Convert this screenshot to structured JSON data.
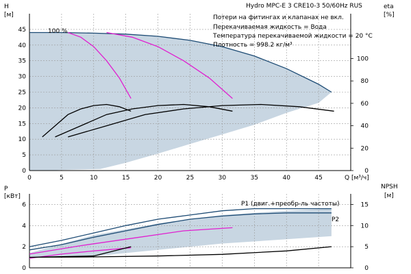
{
  "colors": {
    "background": "#ffffff",
    "axis": "#000000",
    "grid": "#9a9a9a",
    "area_fill": "#c8d6e2",
    "area_fill_light": "#e6eef7",
    "curve_blue": "#1d4b74",
    "curve_magenta": "#e020d0",
    "curve_black": "#000000"
  },
  "chart_data": [
    {
      "type": "line",
      "title": "Hydro MPC-E 3 CRE10-3 50/60Hz RUS",
      "notes": [
        "Потери на фитингах и клапанах не вкл.",
        "Перекачиваемая жидкость = Вода",
        "Температура перекачиваемой жидкости = 20 °C",
        "Плотность = 998.2 кг/м³"
      ],
      "annotation": "100 %",
      "xlabel": "Q [м³/ч]",
      "ylabel_left": [
        "H",
        "[м]"
      ],
      "ylabel_right": [
        "eta",
        "[%]"
      ],
      "xlim": [
        0,
        50
      ],
      "ylim_left": [
        0,
        50
      ],
      "ylim_right": [
        0,
        140
      ],
      "x_ticks": [
        0,
        5,
        10,
        15,
        20,
        25,
        30,
        35,
        40,
        45
      ],
      "y_ticks_left": [
        0,
        5,
        10,
        15,
        20,
        25,
        30,
        35,
        40,
        45
      ],
      "y_ticks_right": [
        0,
        20,
        40,
        60,
        80,
        100
      ],
      "grid": true,
      "operating_area": [
        [
          0,
          44
        ],
        [
          5,
          44
        ],
        [
          10,
          43.8
        ],
        [
          15,
          43.5
        ],
        [
          20,
          42.8
        ],
        [
          25,
          41.5
        ],
        [
          30,
          39.5
        ],
        [
          35,
          36.5
        ],
        [
          40,
          32.5
        ],
        [
          45,
          27.5
        ],
        [
          47,
          25
        ],
        [
          45,
          21.6
        ],
        [
          40,
          18.4
        ],
        [
          35,
          14.6
        ],
        [
          30,
          11.5
        ],
        [
          25,
          8.5
        ],
        [
          20,
          5.4
        ],
        [
          15,
          2.5
        ],
        [
          11,
          0.5
        ],
        [
          7,
          0.3
        ],
        [
          5,
          0.2
        ],
        [
          3,
          0
        ],
        [
          0,
          0
        ]
      ],
      "series": [
        {
          "role": "head_max",
          "color": "#1d4b74",
          "points": [
            [
              0,
              44
            ],
            [
              5,
              44
            ],
            [
              10,
              43.8
            ],
            [
              15,
              43.5
            ],
            [
              20,
              42.8
            ],
            [
              25,
              41.5
            ],
            [
              30,
              39.5
            ],
            [
              35,
              36.5
            ],
            [
              40,
              32.5
            ],
            [
              45,
              27.5
            ],
            [
              47,
              25
            ]
          ]
        },
        {
          "role": "head_1_pump",
          "color": "#e020d0",
          "points": [
            [
              6,
              44
            ],
            [
              8,
              42.5
            ],
            [
              10,
              39.5
            ],
            [
              12,
              35
            ],
            [
              14,
              29.5
            ],
            [
              15.8,
              23
            ]
          ]
        },
        {
          "role": "head_2_pumps",
          "color": "#e020d0",
          "points": [
            [
              12,
              44
            ],
            [
              16,
              42.5
            ],
            [
              20,
              39.5
            ],
            [
              24,
              35
            ],
            [
              28,
              29.5
            ],
            [
              31.6,
              23
            ]
          ]
        },
        {
          "role": "eta_1_pump",
          "color": "#000000",
          "points_right_axis": [
            [
              2,
              30
            ],
            [
              4,
              40
            ],
            [
              6,
              50
            ],
            [
              8,
              55
            ],
            [
              10,
              58
            ],
            [
              12,
              59
            ],
            [
              14,
              57
            ],
            [
              15.8,
              53
            ]
          ]
        },
        {
          "role": "eta_2_pumps",
          "color": "#000000",
          "points_right_axis": [
            [
              4,
              30
            ],
            [
              8,
              40
            ],
            [
              12,
              50
            ],
            [
              16,
              55
            ],
            [
              20,
              58
            ],
            [
              24,
              59
            ],
            [
              28,
              57
            ],
            [
              31.6,
              53
            ]
          ]
        },
        {
          "role": "eta_3_pumps",
          "color": "#000000",
          "points_right_axis": [
            [
              6,
              30
            ],
            [
              12,
              40
            ],
            [
              18,
              50
            ],
            [
              24,
              55
            ],
            [
              30,
              58
            ],
            [
              36,
              59
            ],
            [
              42,
              57
            ],
            [
              47.4,
              53
            ]
          ]
        }
      ]
    },
    {
      "type": "line",
      "xlabel": "",
      "ylabel_left": [
        "P",
        "[кВт]"
      ],
      "ylabel_right": [
        "NPSH",
        "[м]"
      ],
      "xlim": [
        0,
        50
      ],
      "ylim_left": [
        0,
        7
      ],
      "ylim_right": [
        0,
        17.5
      ],
      "y_ticks_left": [
        0,
        2,
        4,
        6
      ],
      "y_ticks_right": [
        0,
        5,
        10,
        15
      ],
      "grid": true,
      "operating_area": [
        [
          0,
          1
        ],
        [
          10,
          1.1
        ],
        [
          20,
          1.7
        ],
        [
          30,
          2.3
        ],
        [
          40,
          2.7
        ],
        [
          47,
          3.0
        ],
        [
          47,
          5.6
        ],
        [
          40,
          5.4
        ],
        [
          30,
          5.0
        ],
        [
          20,
          4.2
        ],
        [
          10,
          3.1
        ],
        [
          0,
          1.4
        ]
      ],
      "series": [
        {
          "name": "P1 (двиг.+преобр-ль частоты)",
          "color": "#1d4b74",
          "points": [
            [
              0,
              2.0
            ],
            [
              5,
              2.6
            ],
            [
              10,
              3.3
            ],
            [
              15,
              4.0
            ],
            [
              20,
              4.6
            ],
            [
              25,
              5.0
            ],
            [
              30,
              5.4
            ],
            [
              35,
              5.6
            ],
            [
              40,
              5.6
            ],
            [
              47,
              5.6
            ]
          ]
        },
        {
          "name": "P2",
          "color": "#1d4b74",
          "points": [
            [
              0,
              1.7
            ],
            [
              5,
              2.2
            ],
            [
              10,
              2.9
            ],
            [
              15,
              3.5
            ],
            [
              20,
              4.1
            ],
            [
              25,
              4.6
            ],
            [
              30,
              4.9
            ],
            [
              35,
              5.1
            ],
            [
              40,
              5.2
            ],
            [
              47,
              5.2
            ]
          ]
        },
        {
          "role": "P_1_pump",
          "color": "#e020d0",
          "points": [
            [
              0,
              0.9
            ],
            [
              5,
              1.3
            ],
            [
              10,
              1.6
            ],
            [
              15.8,
              1.9
            ]
          ]
        },
        {
          "role": "P_2_pumps",
          "color": "#e020d0",
          "points": [
            [
              0,
              1.3
            ],
            [
              8,
              2.1
            ],
            [
              16,
              2.8
            ],
            [
              24,
              3.5
            ],
            [
              31.6,
              3.8
            ]
          ]
        },
        {
          "role": "npsh_total",
          "color": "#000000",
          "points_right_axis": [
            [
              0,
              2.5
            ],
            [
              10,
              2.6
            ],
            [
              20,
              2.8
            ],
            [
              30,
              3.2
            ],
            [
              40,
              4.0
            ],
            [
              47,
              5.0
            ]
          ]
        },
        {
          "role": "npsh_single",
          "color": "#000000",
          "points_right_axis": [
            [
              0,
              2.5
            ],
            [
              10,
              2.8
            ],
            [
              15.8,
              5.0
            ]
          ]
        }
      ]
    }
  ]
}
